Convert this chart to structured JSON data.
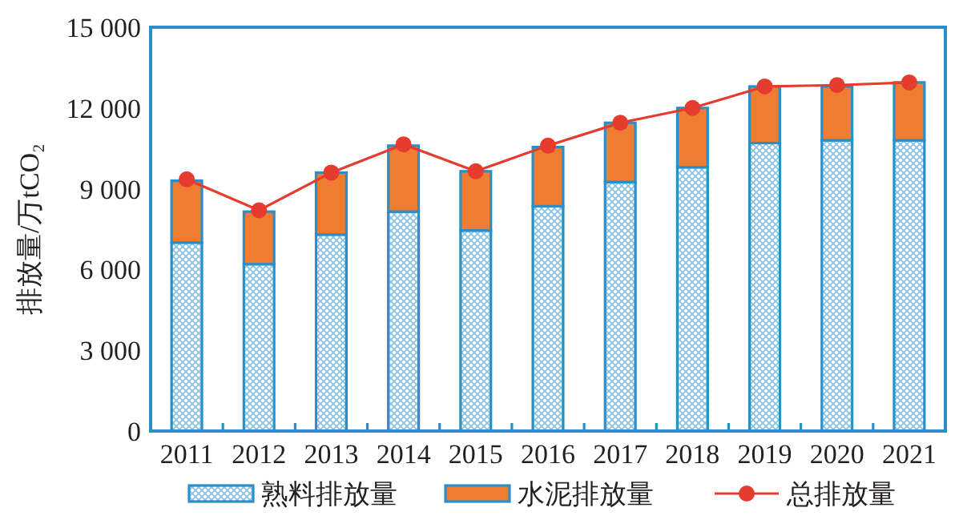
{
  "chart_data": {
    "type": "bar",
    "ylabel": "排放量/万tCO₂",
    "stacked": true,
    "legend": "bottom",
    "grid": false,
    "marker": "circle",
    "categories": [
      "2011",
      "2012",
      "2013",
      "2014",
      "2015",
      "2016",
      "2017",
      "2018",
      "2019",
      "2020",
      "2021"
    ],
    "ylim": [
      0,
      15000
    ],
    "yticks": [
      0,
      {
        "value": 3000,
        "label": "3 000"
      },
      {
        "value": 6000,
        "label": "6 000"
      },
      {
        "value": 9000,
        "label": "9 000"
      },
      {
        "value": 12000,
        "label": "12 000"
      },
      {
        "value": 15000,
        "label": "15 000"
      }
    ],
    "series": [
      {
        "name": "熟料排放量",
        "color": "#2a8fc7",
        "values": [
          7000,
          6200,
          7300,
          8150,
          7450,
          8350,
          9250,
          9800,
          10700,
          10800,
          10800
        ]
      },
      {
        "name": "水泥排放量",
        "color": "#f07c32",
        "values": [
          2300,
          1950,
          2300,
          2450,
          2200,
          2200,
          2200,
          2200,
          2100,
          2000,
          2150
        ]
      },
      {
        "name": "总排放量",
        "type": "line",
        "color": "#e63c2f",
        "values": [
          9350,
          8200,
          9600,
          10650,
          9650,
          10600,
          11450,
          12000,
          12800,
          12850,
          12950
        ]
      }
    ]
  }
}
